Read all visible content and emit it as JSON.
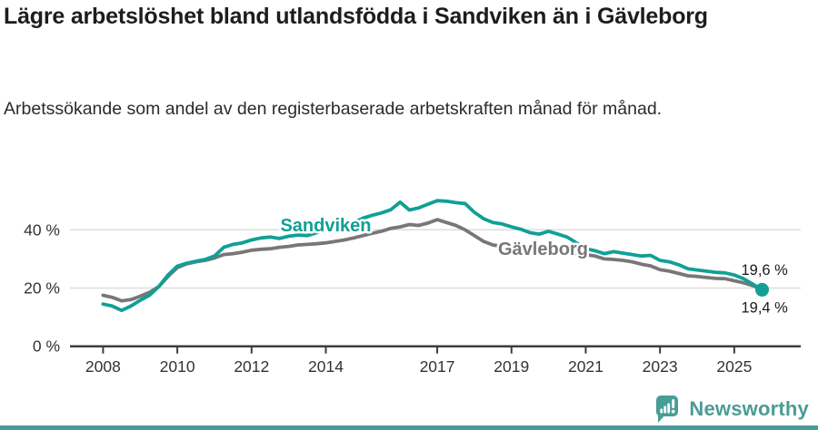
{
  "header": {
    "title": "Lägre arbetslöshet bland utlandsfödda i Sandviken än i Gävleborg",
    "subtitle": "Arbetssökande som andel av den registerbaserade arbetskraften månad för månad."
  },
  "footer": {
    "brand": "Newsworthy",
    "logo_icon": "newsworthy-bubble-bar-chart-icon"
  },
  "colors": {
    "sandviken_teal": "#10a095",
    "gavleborg_gray": "#777777",
    "brand_teal": "#4a9c96",
    "grid_gray": "#dddddd",
    "axis_dark": "#3d3d3d",
    "tick_text": "#333333",
    "annotation_text": "#1a1a1a"
  },
  "chart_data": {
    "type": "line",
    "unit": "%",
    "grid": "horizontal",
    "x_axis": {
      "ticks": [
        2008,
        2010,
        2012,
        2014,
        2017,
        2019,
        2021,
        2023,
        2025
      ],
      "range": [
        2007.1,
        2026.8
      ]
    },
    "y_axis": {
      "ticks": [
        0,
        20,
        40
      ],
      "tick_labels": [
        "0 %",
        "20 %",
        "40 %"
      ],
      "range": [
        0,
        57
      ]
    },
    "series": [
      {
        "name": "Gävleborg",
        "color": "#777777",
        "end_label": "19,6 %",
        "end_value": 19.6,
        "end_label_side": "above",
        "end_dot": false,
        "label_pos": {
          "year": 2019.85,
          "value": 31.3
        },
        "points": [
          [
            2008.0,
            17.5
          ],
          [
            2008.25,
            16.8
          ],
          [
            2008.5,
            15.6
          ],
          [
            2008.75,
            16.0
          ],
          [
            2009.0,
            17.2
          ],
          [
            2009.25,
            18.5
          ],
          [
            2009.5,
            20.5
          ],
          [
            2009.75,
            24.0
          ],
          [
            2010.0,
            27.0
          ],
          [
            2010.25,
            28.3
          ],
          [
            2010.5,
            29.0
          ],
          [
            2010.75,
            29.5
          ],
          [
            2011.0,
            30.3
          ],
          [
            2011.25,
            31.5
          ],
          [
            2011.5,
            31.8
          ],
          [
            2011.75,
            32.3
          ],
          [
            2012.0,
            33.0
          ],
          [
            2012.25,
            33.3
          ],
          [
            2012.5,
            33.5
          ],
          [
            2012.75,
            34.0
          ],
          [
            2013.0,
            34.3
          ],
          [
            2013.25,
            34.8
          ],
          [
            2013.5,
            35.0
          ],
          [
            2013.75,
            35.2
          ],
          [
            2014.0,
            35.5
          ],
          [
            2014.25,
            36.0
          ],
          [
            2014.5,
            36.5
          ],
          [
            2014.75,
            37.2
          ],
          [
            2015.0,
            38.0
          ],
          [
            2015.25,
            38.8
          ],
          [
            2015.5,
            39.5
          ],
          [
            2015.75,
            40.5
          ],
          [
            2016.0,
            41.0
          ],
          [
            2016.25,
            41.8
          ],
          [
            2016.5,
            41.5
          ],
          [
            2016.75,
            42.3
          ],
          [
            2017.0,
            43.5
          ],
          [
            2017.25,
            42.5
          ],
          [
            2017.5,
            41.5
          ],
          [
            2017.75,
            40.0
          ],
          [
            2018.0,
            38.0
          ],
          [
            2018.25,
            36.0
          ],
          [
            2018.5,
            34.8
          ],
          [
            2018.75,
            34.3
          ],
          [
            2019.0,
            34.0
          ],
          [
            2019.25,
            33.8
          ],
          [
            2019.5,
            33.5
          ],
          [
            2019.75,
            33.3
          ],
          [
            2020.0,
            33.0
          ],
          [
            2020.25,
            32.6
          ],
          [
            2020.5,
            32.2
          ],
          [
            2020.75,
            32.0
          ],
          [
            2021.0,
            31.5
          ],
          [
            2021.25,
            31.0
          ],
          [
            2021.5,
            30.0
          ],
          [
            2021.75,
            29.8
          ],
          [
            2022.0,
            29.5
          ],
          [
            2022.25,
            29.0
          ],
          [
            2022.5,
            28.2
          ],
          [
            2022.75,
            27.6
          ],
          [
            2023.0,
            26.3
          ],
          [
            2023.25,
            25.8
          ],
          [
            2023.5,
            25.0
          ],
          [
            2023.75,
            24.2
          ],
          [
            2024.0,
            24.0
          ],
          [
            2024.25,
            23.6
          ],
          [
            2024.5,
            23.3
          ],
          [
            2024.75,
            23.2
          ],
          [
            2025.0,
            22.5
          ],
          [
            2025.25,
            21.8
          ],
          [
            2025.5,
            20.8
          ],
          [
            2025.75,
            19.6
          ]
        ]
      },
      {
        "name": "Sandviken",
        "color": "#10a095",
        "end_label": "19,4 %",
        "end_value": 19.4,
        "end_label_side": "below",
        "end_dot": true,
        "label_pos": {
          "year": 2014.0,
          "value": 39.5
        },
        "points": [
          [
            2008.0,
            14.5
          ],
          [
            2008.25,
            13.8
          ],
          [
            2008.5,
            12.3
          ],
          [
            2008.75,
            13.8
          ],
          [
            2009.0,
            15.8
          ],
          [
            2009.25,
            17.5
          ],
          [
            2009.5,
            20.5
          ],
          [
            2009.75,
            24.5
          ],
          [
            2010.0,
            27.5
          ],
          [
            2010.25,
            28.5
          ],
          [
            2010.5,
            29.2
          ],
          [
            2010.75,
            29.8
          ],
          [
            2011.0,
            31.0
          ],
          [
            2011.25,
            34.0
          ],
          [
            2011.5,
            35.0
          ],
          [
            2011.75,
            35.5
          ],
          [
            2012.0,
            36.5
          ],
          [
            2012.25,
            37.2
          ],
          [
            2012.5,
            37.5
          ],
          [
            2012.75,
            37.0
          ],
          [
            2013.0,
            37.8
          ],
          [
            2013.25,
            38.2
          ],
          [
            2013.5,
            38.0
          ],
          [
            2013.75,
            39.0
          ],
          [
            2014.0,
            40.0
          ],
          [
            2014.25,
            40.5
          ],
          [
            2014.5,
            41.5
          ],
          [
            2014.75,
            42.5
          ],
          [
            2015.0,
            44.0
          ],
          [
            2015.25,
            45.0
          ],
          [
            2015.5,
            45.8
          ],
          [
            2015.75,
            46.9
          ],
          [
            2016.0,
            49.5
          ],
          [
            2016.25,
            46.8
          ],
          [
            2016.5,
            47.5
          ],
          [
            2016.75,
            48.8
          ],
          [
            2017.0,
            50.0
          ],
          [
            2017.25,
            49.8
          ],
          [
            2017.5,
            49.3
          ],
          [
            2017.75,
            49.0
          ],
          [
            2018.0,
            46.0
          ],
          [
            2018.25,
            43.8
          ],
          [
            2018.5,
            42.5
          ],
          [
            2018.75,
            42.0
          ],
          [
            2019.0,
            41.0
          ],
          [
            2019.25,
            40.2
          ],
          [
            2019.5,
            39.0
          ],
          [
            2019.75,
            38.5
          ],
          [
            2020.0,
            39.5
          ],
          [
            2020.25,
            38.5
          ],
          [
            2020.5,
            37.5
          ],
          [
            2020.75,
            35.5
          ],
          [
            2021.0,
            33.5
          ],
          [
            2021.25,
            32.8
          ],
          [
            2021.5,
            31.8
          ],
          [
            2021.75,
            32.5
          ],
          [
            2022.0,
            32.0
          ],
          [
            2022.25,
            31.5
          ],
          [
            2022.5,
            31.0
          ],
          [
            2022.75,
            31.2
          ],
          [
            2023.0,
            29.5
          ],
          [
            2023.25,
            29.0
          ],
          [
            2023.5,
            28.0
          ],
          [
            2023.75,
            26.6
          ],
          [
            2024.0,
            26.2
          ],
          [
            2024.25,
            25.8
          ],
          [
            2024.5,
            25.4
          ],
          [
            2024.75,
            25.2
          ],
          [
            2025.0,
            24.5
          ],
          [
            2025.25,
            23.2
          ],
          [
            2025.5,
            21.3
          ],
          [
            2025.75,
            19.4
          ]
        ]
      }
    ]
  }
}
